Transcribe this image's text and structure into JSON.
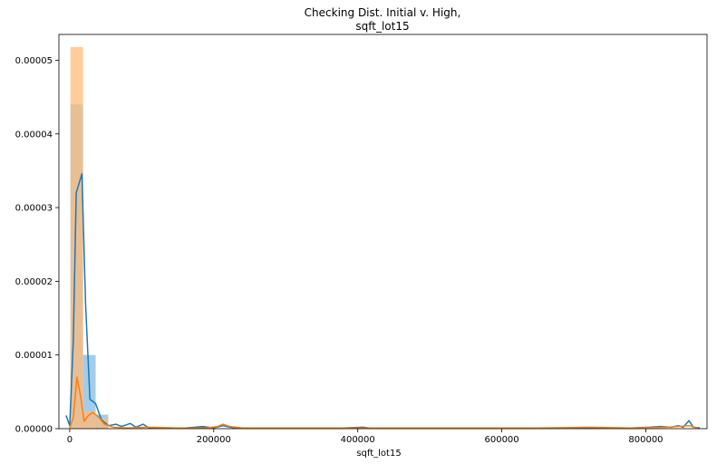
{
  "chart_data": {
    "type": "bar",
    "title_line1": "Checking Dist. Initial v. High,",
    "title_line2": "sqft_lot15",
    "xlabel": "sqft_lot15",
    "ylabel": "",
    "xlim": [
      -15000,
      885000
    ],
    "ylim": [
      0,
      5.35e-05
    ],
    "xticks": [
      0,
      200000,
      400000,
      600000,
      800000
    ],
    "xtick_labels": [
      "0",
      "200000",
      "400000",
      "600000",
      "800000"
    ],
    "yticks": [
      0,
      1e-05,
      2e-05,
      3e-05,
      4e-05,
      5e-05
    ],
    "ytick_labels": [
      "0.00000",
      "0.00001",
      "0.00002",
      "0.00003",
      "0.00004",
      "0.00005"
    ],
    "grid": false,
    "series": [
      {
        "color": "#1f77b4",
        "bar_color": "#9ec9e8",
        "bins": [
          {
            "x0": 1000,
            "x1": 18500,
            "y": 4.4e-05
          },
          {
            "x0": 18500,
            "x1": 36000,
            "y": 1e-05
          },
          {
            "x0": 36000,
            "x1": 53500,
            "y": 1.9e-06
          }
        ],
        "kde": [
          [
            -5000,
            1.8e-06
          ],
          [
            0,
            4e-07
          ],
          [
            5000,
            1.2e-05
          ],
          [
            9000,
            3.2e-05
          ],
          [
            17000,
            3.46e-05
          ],
          [
            22000,
            1.7e-05
          ],
          [
            28000,
            4e-06
          ],
          [
            36000,
            3.4e-06
          ],
          [
            44000,
            1.2e-06
          ],
          [
            54000,
            4e-07
          ],
          [
            64000,
            6e-07
          ],
          [
            72000,
            3e-07
          ],
          [
            84000,
            7e-07
          ],
          [
            92000,
            2e-07
          ],
          [
            102000,
            6e-07
          ],
          [
            110000,
            1e-07
          ],
          [
            135000,
            1e-07
          ],
          [
            160000,
            1e-07
          ],
          [
            185000,
            3e-07
          ],
          [
            200000,
            1e-07
          ],
          [
            213000,
            4e-07
          ],
          [
            222000,
            2e-07
          ],
          [
            235000,
            1e-07
          ],
          [
            300000,
            1e-07
          ],
          [
            380000,
            1e-07
          ],
          [
            408000,
            2e-07
          ],
          [
            416000,
            1e-07
          ],
          [
            500000,
            1e-07
          ],
          [
            600000,
            1e-07
          ],
          [
            700000,
            1e-07
          ],
          [
            780000,
            1e-07
          ],
          [
            805000,
            2e-07
          ],
          [
            820000,
            3e-07
          ],
          [
            835000,
            2e-07
          ],
          [
            845000,
            4e-07
          ],
          [
            852000,
            2e-07
          ],
          [
            860000,
            1.1e-06
          ],
          [
            866000,
            2e-07
          ],
          [
            875000,
            1e-07
          ]
        ]
      },
      {
        "color": "#ff7f0e",
        "bar_color": "#ffbb78",
        "bins": [
          {
            "x0": 1000,
            "x1": 18500,
            "y": 5.18e-05
          },
          {
            "x0": 18500,
            "x1": 36000,
            "y": 2.4e-06
          },
          {
            "x0": 36000,
            "x1": 53500,
            "y": 1.4e-06
          }
        ],
        "kde": [
          [
            0,
            1e-07
          ],
          [
            5000,
            1.5e-06
          ],
          [
            10000,
            7e-06
          ],
          [
            15000,
            4.5e-06
          ],
          [
            20000,
            1e-06
          ],
          [
            26000,
            1.8e-06
          ],
          [
            32000,
            2.2e-06
          ],
          [
            40000,
            1.6e-06
          ],
          [
            48000,
            6e-07
          ],
          [
            60000,
            2e-07
          ],
          [
            80000,
            1e-07
          ],
          [
            110000,
            2e-07
          ],
          [
            150000,
            1e-07
          ],
          [
            190000,
            1e-07
          ],
          [
            205000,
            3e-07
          ],
          [
            213000,
            6e-07
          ],
          [
            222000,
            3e-07
          ],
          [
            240000,
            1e-07
          ],
          [
            350000,
            1e-07
          ],
          [
            500000,
            1e-07
          ],
          [
            650000,
            1e-07
          ],
          [
            720000,
            2e-07
          ],
          [
            780000,
            1e-07
          ],
          [
            830000,
            2e-07
          ],
          [
            860000,
            4e-07
          ],
          [
            872000,
            1e-07
          ]
        ]
      }
    ]
  }
}
